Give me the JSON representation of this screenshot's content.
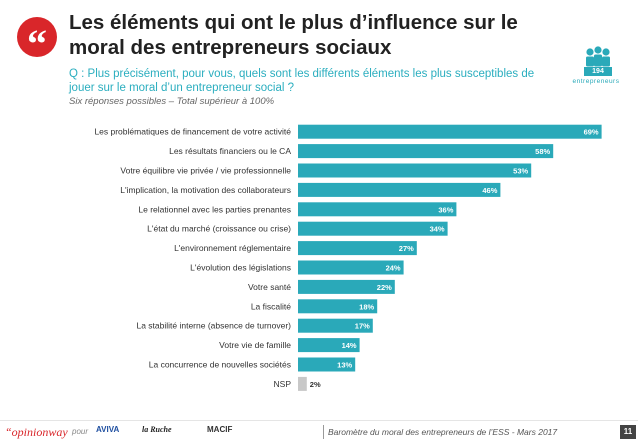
{
  "header": {
    "title": "Les éléments qui ont le plus d’influence sur le moral des entrepreneurs sociaux",
    "question": "Q : Plus précisément, pour vous, quels sont les différents éléments les plus susceptibles de jouer sur le moral d’un entrepreneur social ?",
    "note": "Six réponses possibles – Total supérieur à 100%",
    "respondents_count": "194",
    "respondents_label": "entrepreneurs",
    "accent_color": "#2aa9b9",
    "quote_color": "#d9262a"
  },
  "chart_data": {
    "type": "bar",
    "orientation": "horizontal",
    "categories": [
      "Les problématiques de financement de votre activité",
      "Les résultats financiers ou le CA",
      "Votre équilibre vie privée / vie professionnelle",
      "L'implication, la motivation des collaborateurs",
      "Le relationnel avec les parties prenantes",
      "L'état du marché (croissance ou crise)",
      "L'environnement réglementaire",
      "L'évolution des législations",
      "Votre santé",
      "La fiscalité",
      "La stabilité interne (absence de turnover)",
      "Votre vie de famille",
      "La concurrence de nouvelles sociétés",
      "NSP"
    ],
    "values": [
      69,
      58,
      53,
      46,
      36,
      34,
      27,
      24,
      22,
      18,
      17,
      14,
      13,
      2
    ],
    "value_labels": [
      "69%",
      "58%",
      "53%",
      "46%",
      "36%",
      "34%",
      "27%",
      "24%",
      "22%",
      "18%",
      "17%",
      "14%",
      "13%",
      "2%"
    ],
    "xlim": [
      0,
      100
    ],
    "grid": false,
    "legend": "none",
    "bar_color": "#2aa9b9",
    "nsp_color": "#c8c8c8"
  },
  "footer": {
    "brand": "“opinionway",
    "pour": "pour",
    "logos": [
      "AVIVA",
      "la Ruche",
      "MACIF"
    ],
    "caption": "Baromètre du moral des entrepreneurs de l’ESS - Mars 2017",
    "page": "11"
  }
}
